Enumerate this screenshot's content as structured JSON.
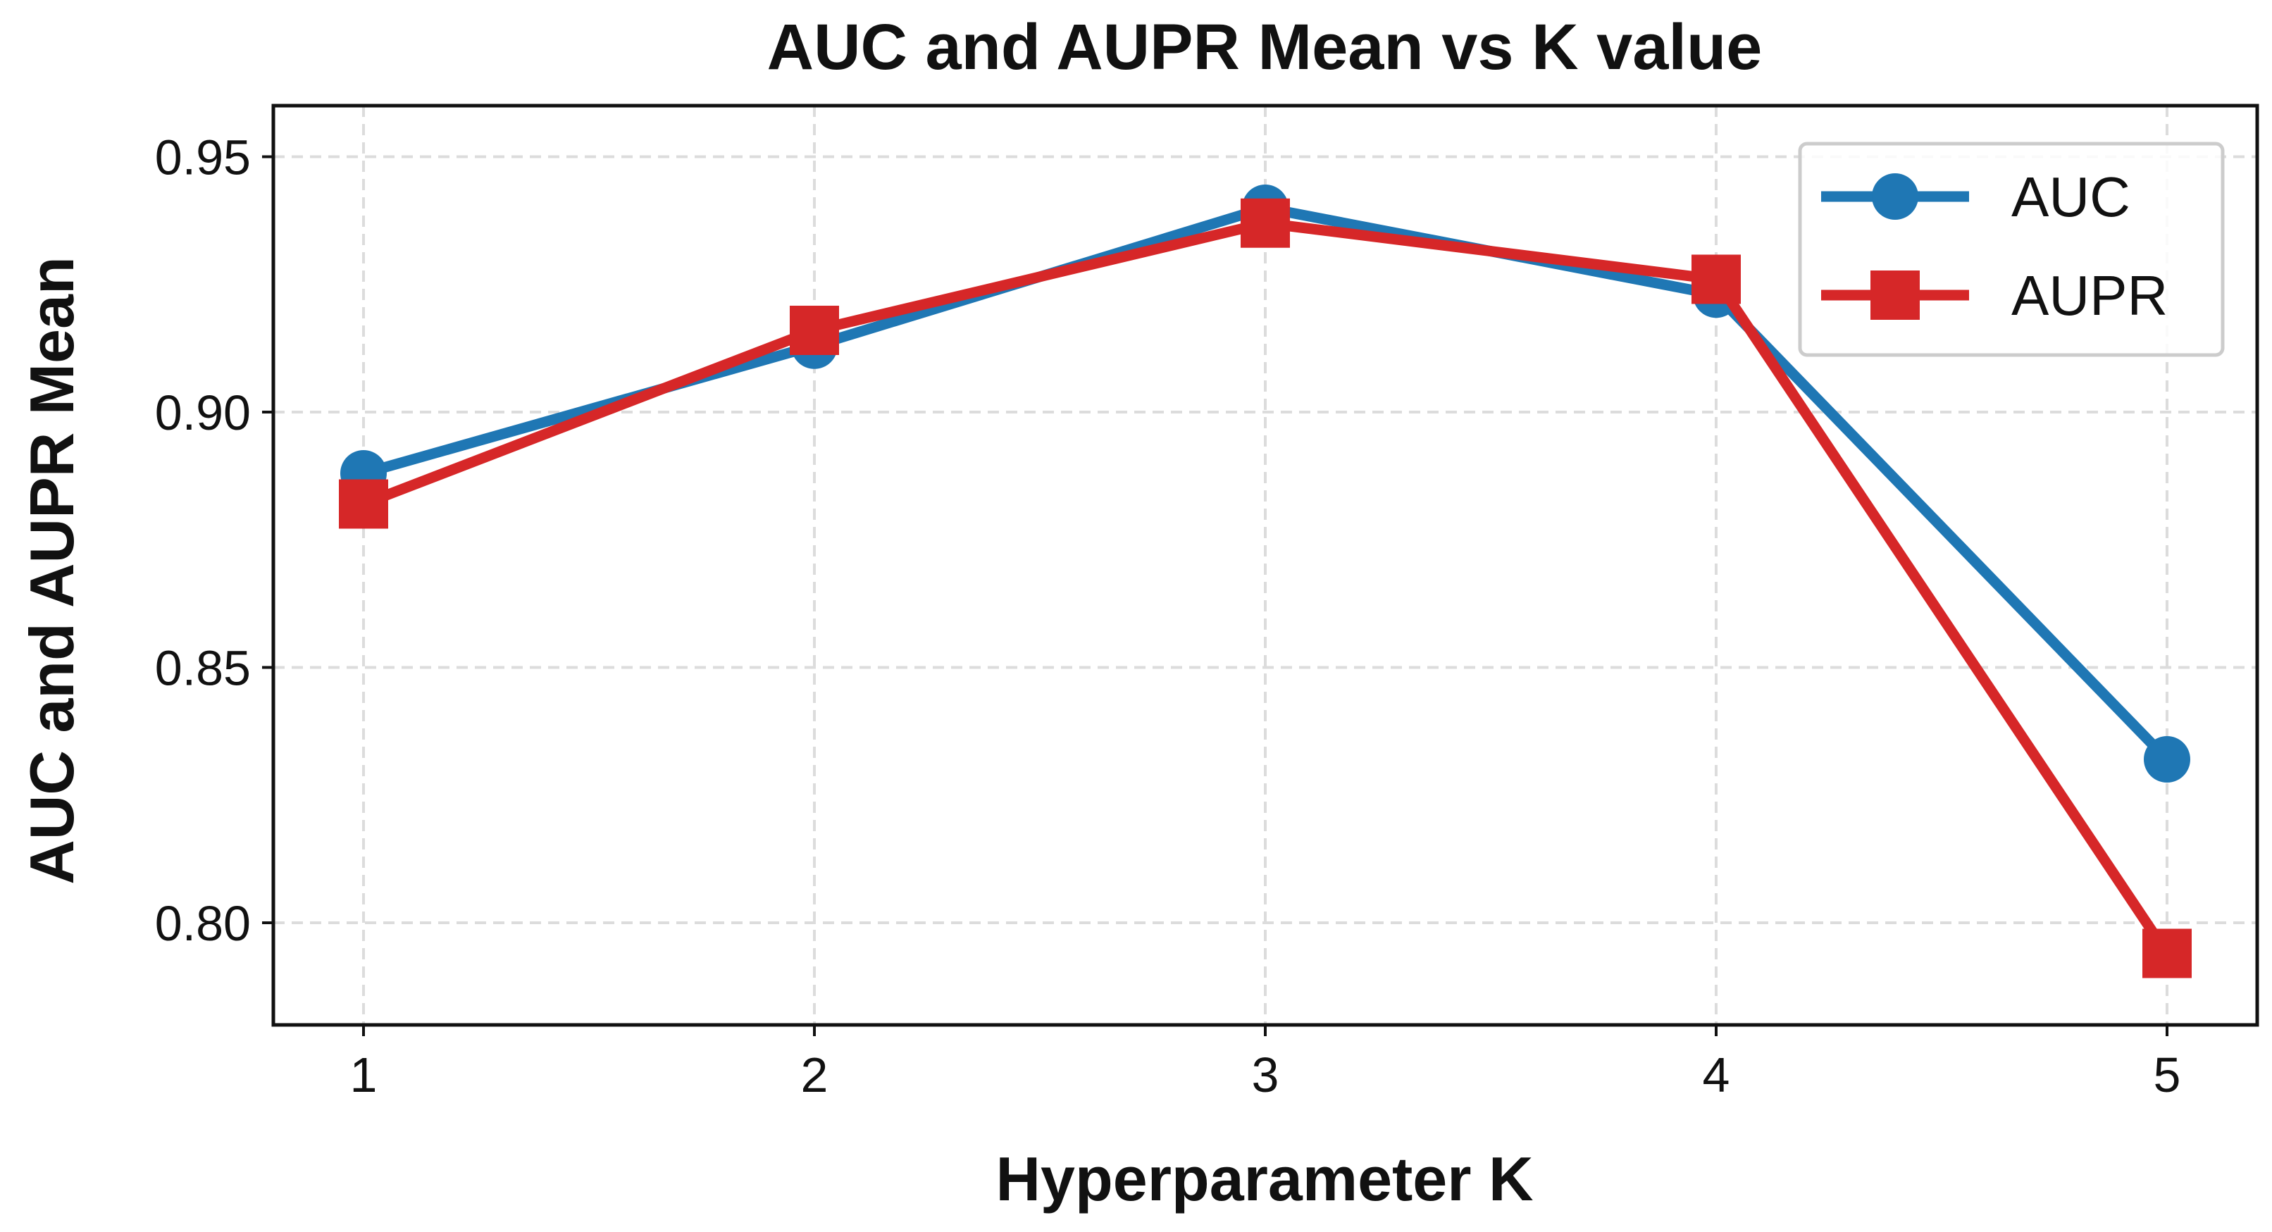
{
  "chart_data": {
    "type": "line",
    "title": "AUC and AUPR Mean vs K value",
    "xlabel": "Hyperparameter K",
    "ylabel": "AUC and AUPR Mean",
    "x": [
      1,
      2,
      3,
      4,
      5
    ],
    "x_ticks": [
      "1",
      "2",
      "3",
      "4",
      "5"
    ],
    "xlim": [
      0.8,
      5.2
    ],
    "y_ticks": [
      "0.80",
      "0.85",
      "0.90",
      "0.95"
    ],
    "ylim": [
      0.78,
      0.96
    ],
    "grid": true,
    "legend_position": "top-right",
    "series": [
      {
        "name": "AUC",
        "values": [
          0.888,
          0.913,
          0.94,
          0.923,
          0.832
        ],
        "color": "#1f77b4",
        "marker": "circle"
      },
      {
        "name": "AUPR",
        "values": [
          0.882,
          0.916,
          0.937,
          0.926,
          0.794
        ],
        "color": "#d62728",
        "marker": "square"
      }
    ]
  }
}
